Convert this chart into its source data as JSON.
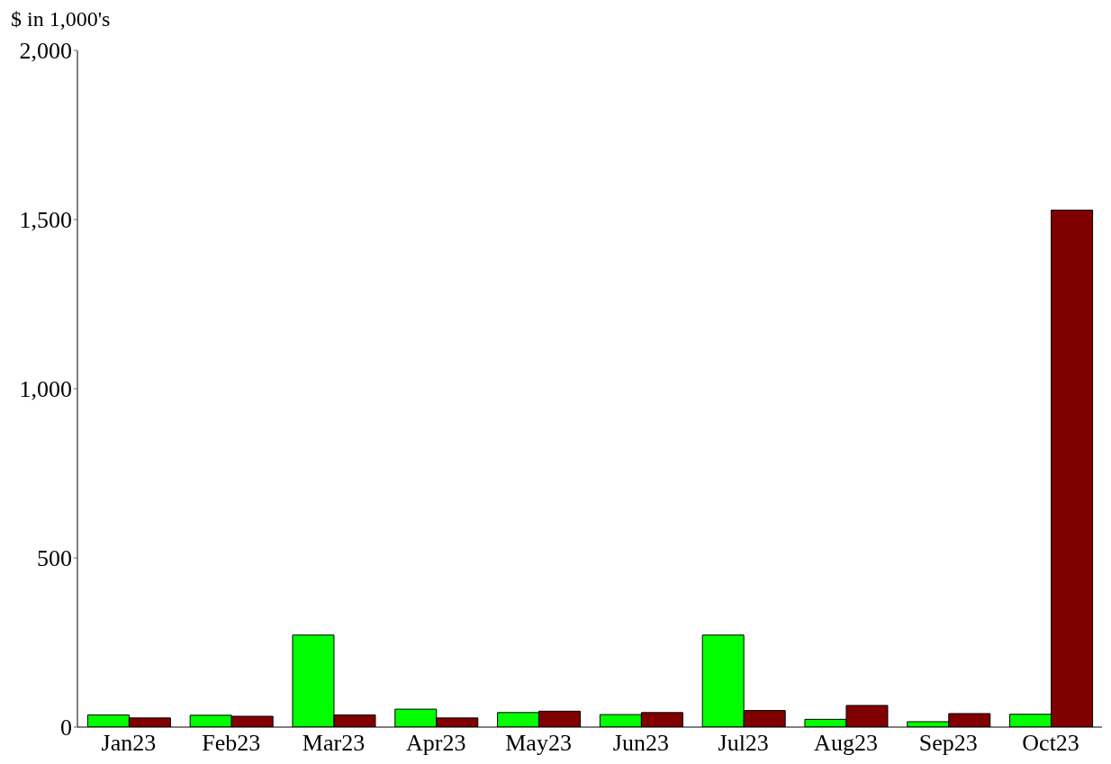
{
  "chart_data": {
    "type": "bar",
    "ylabel": "$ in 1,000's",
    "categories": [
      "Jan23",
      "Feb23",
      "Mar23",
      "Apr23",
      "May23",
      "Jun23",
      "Jul23",
      "Aug23",
      "Sep23",
      "Oct23"
    ],
    "series": [
      {
        "color": "#00ff00",
        "values": [
          36,
          35,
          272,
          53,
          43,
          37,
          272,
          23,
          16,
          38
        ]
      },
      {
        "color": "#800000",
        "values": [
          27,
          32,
          36,
          27,
          47,
          43,
          49,
          64,
          40,
          1528
        ]
      }
    ],
    "ylim": [
      0,
      2000
    ],
    "yticks": [
      0,
      {
        "value": 500,
        "label": "500"
      },
      {
        "value": 1000,
        "label": "1,000"
      },
      {
        "value": 1500,
        "label": "1,500"
      },
      {
        "value": 2000,
        "label": "2,000"
      }
    ],
    "grid": false,
    "legend": false
  }
}
